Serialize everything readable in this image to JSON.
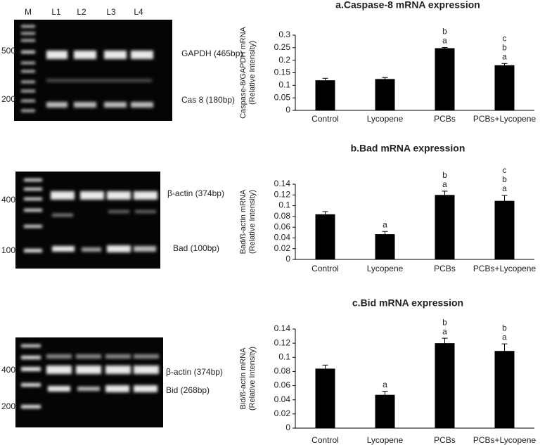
{
  "chart_data": [
    {
      "type": "bar",
      "title": "a.Caspase-8 mRNA  expression",
      "ylabel": [
        "Caspase-8/GAPDH mRNA",
        "(Relative  Intensity)"
      ],
      "categories": [
        "Control",
        "Lycopene",
        "PCBs",
        "PCBs+Lycopene"
      ],
      "values": [
        0.12,
        0.125,
        0.248,
        0.18
      ],
      "errors": [
        0.008,
        0.006,
        0.003,
        0.007
      ],
      "letters": [
        null,
        null,
        [
          "b",
          "a"
        ],
        [
          "c",
          "b",
          "a"
        ]
      ],
      "color": "#000000",
      "ylim": [
        0,
        0.3
      ],
      "yticks": [
        0,
        0.05,
        0.1,
        0.15,
        0.2,
        0.25,
        0.3
      ]
    },
    {
      "type": "bar",
      "title": "b.Bad mRNA  expression",
      "ylabel": [
        "Bad/ß-actin mRNA",
        "(Relative  Intensity)"
      ],
      "categories": [
        "Control",
        "Lycopene",
        "PCBs",
        "PCBs+Lycopene"
      ],
      "values": [
        0.084,
        0.047,
        0.12,
        0.109
      ],
      "errors": [
        0.005,
        0.005,
        0.007,
        0.01
      ],
      "letters": [
        null,
        [
          "a"
        ],
        [
          "b",
          "a"
        ],
        [
          "c",
          "b",
          "a"
        ]
      ],
      "color": "#000000",
      "ylim": [
        0,
        0.14
      ],
      "yticks": [
        0,
        0.02,
        0.04,
        0.06,
        0.08,
        0.1,
        0.12,
        0.14
      ]
    },
    {
      "type": "bar",
      "title": "c.Bid mRNA  expression",
      "ylabel": [
        "Bid/ß-actin mRNA",
        "(Relative  Intensity)"
      ],
      "categories": [
        "Control",
        "Lycopene",
        "PCBs",
        "PCBs+Lycopene"
      ],
      "values": [
        0.084,
        0.047,
        0.12,
        0.109
      ],
      "errors": [
        0.005,
        0.005,
        0.007,
        0.01
      ],
      "letters": [
        null,
        [
          "a"
        ],
        [
          "b",
          "a"
        ],
        [
          "b",
          "a"
        ]
      ],
      "color": "#000000",
      "ylim": [
        0,
        0.14
      ],
      "yticks": [
        0,
        0.02,
        0.04,
        0.06,
        0.08,
        0.1,
        0.12,
        0.14
      ]
    }
  ],
  "gels": [
    {
      "lanes": [
        "M",
        "L1",
        "L2",
        "L3",
        "L4"
      ],
      "markers": [
        "500",
        "200"
      ],
      "bands": [
        "GAPDH (465bp)",
        "Cas 8 (180bp)"
      ]
    },
    {
      "markers": [
        "400",
        "100"
      ],
      "bands": [
        "β-actin (374bp)",
        "Bad (100bp)"
      ]
    },
    {
      "markers": [
        "400",
        "200"
      ],
      "bands": [
        "β-actin (374bp)",
        "Bid (268bp)"
      ]
    }
  ]
}
